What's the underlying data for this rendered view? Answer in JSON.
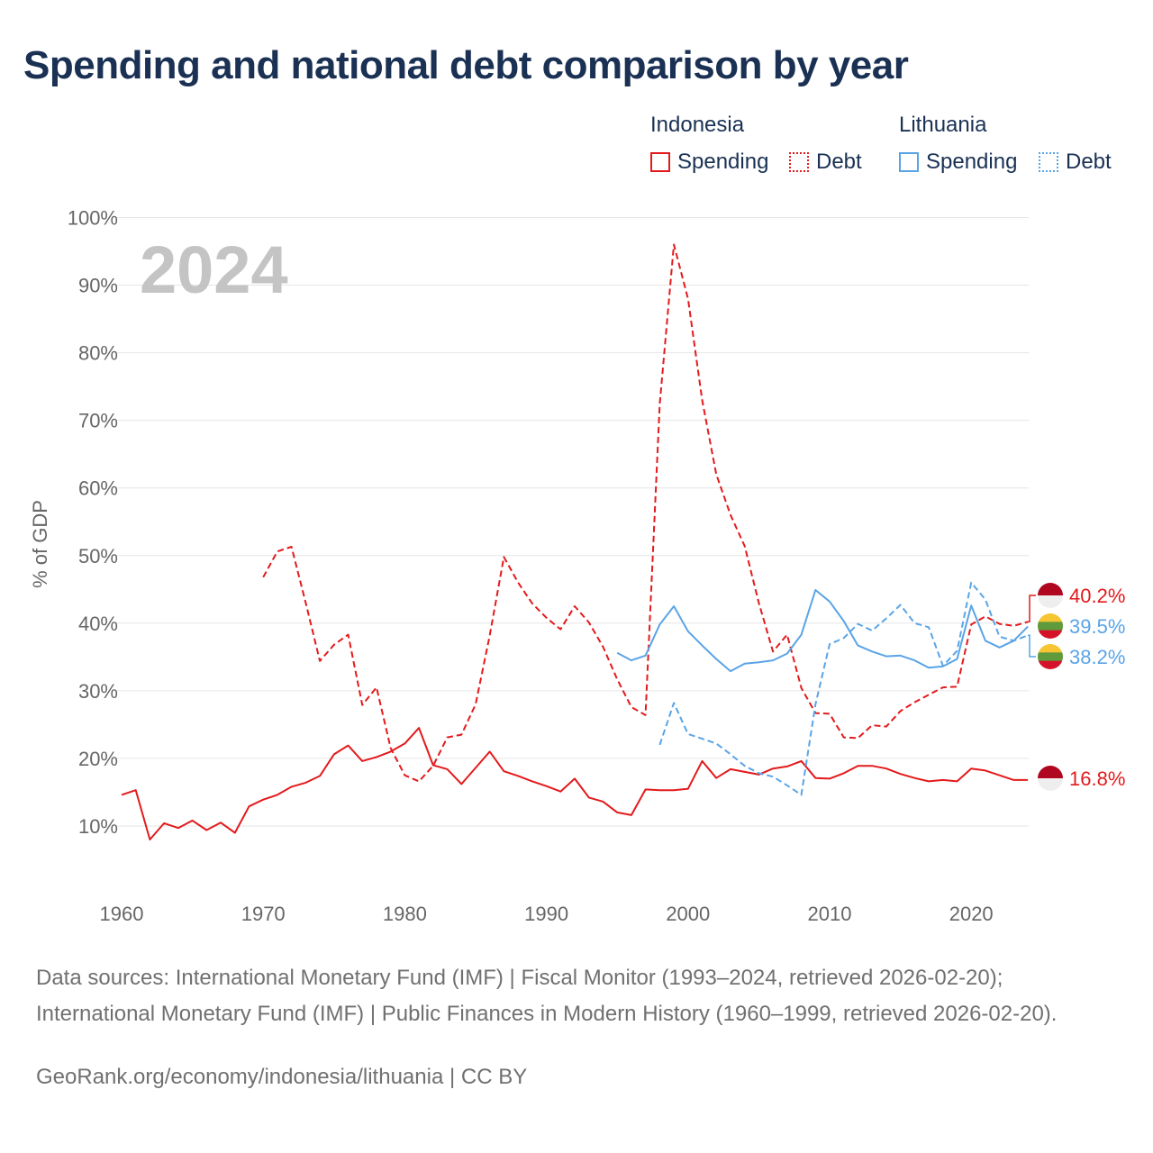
{
  "title": "Spending and national debt comparison by year",
  "legend": {
    "groups": [
      {
        "name": "Indonesia",
        "items": [
          "Spending",
          "Debt"
        ]
      },
      {
        "name": "Lithuania",
        "items": [
          "Spending",
          "Debt"
        ]
      }
    ]
  },
  "colors": {
    "indonesia": "#e31a1c",
    "lithuania": "#5aa4e6",
    "year_watermark": "#c4c4c4",
    "grid": "#e6e6e6",
    "axis_text": "#666666"
  },
  "chart_data": {
    "type": "line",
    "ylabel": "% of GDP",
    "year_label": "2024",
    "xlim": [
      1960,
      2025
    ],
    "ylim": [
      0,
      100
    ],
    "x_ticks": [
      1960,
      1970,
      1980,
      1990,
      2000,
      2010,
      2020
    ],
    "y_ticks": [
      10,
      20,
      30,
      40,
      50,
      60,
      70,
      80,
      90,
      100
    ],
    "y_tick_labels": [
      "10%",
      "20%",
      "30%",
      "40%",
      "50%",
      "60%",
      "70%",
      "80%",
      "90%",
      "100%"
    ],
    "series": [
      {
        "name": "Indonesia Spending",
        "country": "Indonesia",
        "measure": "Spending",
        "style": "solid",
        "x": [
          1960,
          1961,
          1962,
          1963,
          1964,
          1965,
          1966,
          1967,
          1968,
          1969,
          1970,
          1971,
          1972,
          1973,
          1974,
          1975,
          1976,
          1977,
          1978,
          1979,
          1980,
          1981,
          1982,
          1983,
          1984,
          1985,
          1986,
          1987,
          1988,
          1989,
          1990,
          1991,
          1992,
          1993,
          1994,
          1995,
          1996,
          1997,
          1998,
          1999,
          2000,
          2001,
          2002,
          2003,
          2004,
          2005,
          2006,
          2007,
          2008,
          2009,
          2010,
          2011,
          2012,
          2013,
          2014,
          2015,
          2016,
          2017,
          2018,
          2019,
          2020,
          2021,
          2022,
          2023,
          2024
        ],
        "values": [
          14.6,
          15.3,
          8.0,
          10.4,
          9.7,
          10.8,
          9.4,
          10.5,
          9.0,
          12.9,
          13.9,
          14.6,
          15.8,
          16.4,
          17.4,
          20.6,
          21.9,
          19.6,
          20.2,
          21.0,
          22.2,
          24.5,
          19.0,
          18.4,
          16.2,
          18.6,
          21.0,
          18.1,
          17.4,
          16.6,
          15.9,
          15.1,
          17.0,
          14.2,
          13.6,
          12.0,
          11.6,
          15.4,
          15.3,
          15.3,
          15.5,
          19.6,
          17.1,
          18.4,
          18.0,
          17.6,
          18.5,
          18.8,
          19.6,
          17.1,
          17.0,
          17.8,
          18.9,
          18.9,
          18.5,
          17.7,
          17.1,
          16.6,
          16.8,
          16.6,
          18.5,
          18.2,
          17.5,
          16.8,
          16.8
        ]
      },
      {
        "name": "Indonesia Debt",
        "country": "Indonesia",
        "measure": "Debt",
        "style": "dashed",
        "x": [
          1970,
          1971,
          1972,
          1973,
          1974,
          1975,
          1976,
          1977,
          1978,
          1979,
          1980,
          1981,
          1982,
          1983,
          1984,
          1985,
          1986,
          1987,
          1988,
          1989,
          1990,
          1991,
          1992,
          1993,
          1994,
          1995,
          1996,
          1997,
          1998,
          1999,
          2000,
          2001,
          2002,
          2003,
          2004,
          2005,
          2006,
          2007,
          2008,
          2009,
          2010,
          2011,
          2012,
          2013,
          2014,
          2015,
          2016,
          2017,
          2018,
          2019,
          2020,
          2021,
          2022,
          2023,
          2024
        ],
        "values": [
          46.8,
          50.6,
          51.3,
          43.0,
          34.4,
          36.8,
          38.3,
          27.9,
          30.5,
          21.5,
          17.5,
          16.6,
          18.9,
          23.1,
          23.5,
          28.0,
          38.2,
          49.8,
          46.0,
          42.9,
          40.8,
          39.1,
          42.5,
          40.1,
          36.5,
          31.7,
          27.6,
          26.4,
          72.4,
          96.0,
          88.0,
          73.0,
          62.0,
          56.0,
          51.4,
          43.0,
          35.8,
          38.3,
          30.4,
          26.7,
          26.6,
          23.1,
          23.0,
          24.9,
          24.7,
          27.0,
          28.3,
          29.4,
          30.5,
          30.6,
          39.8,
          41.0,
          39.9,
          39.6,
          40.2
        ]
      },
      {
        "name": "Lithuania Spending",
        "country": "Lithuania",
        "measure": "Spending",
        "style": "solid",
        "x": [
          1995,
          1996,
          1997,
          1998,
          1999,
          2000,
          2001,
          2002,
          2003,
          2004,
          2005,
          2006,
          2007,
          2008,
          2009,
          2010,
          2011,
          2012,
          2013,
          2014,
          2015,
          2016,
          2017,
          2018,
          2019,
          2020,
          2021,
          2022,
          2023,
          2024
        ],
        "values": [
          35.6,
          34.5,
          35.2,
          39.8,
          42.5,
          38.8,
          36.7,
          34.7,
          32.9,
          34.0,
          34.2,
          34.5,
          35.5,
          38.3,
          44.9,
          43.2,
          40.3,
          36.7,
          35.8,
          35.1,
          35.2,
          34.5,
          33.4,
          33.6,
          34.7,
          42.6,
          37.4,
          36.4,
          37.4,
          39.5
        ]
      },
      {
        "name": "Lithuania Debt",
        "country": "Lithuania",
        "measure": "Debt",
        "style": "dashed",
        "x": [
          1998,
          1999,
          2000,
          2001,
          2002,
          2003,
          2004,
          2005,
          2006,
          2007,
          2008,
          2009,
          2010,
          2011,
          2012,
          2013,
          2014,
          2015,
          2016,
          2017,
          2018,
          2019,
          2020,
          2021,
          2022,
          2023,
          2024
        ],
        "values": [
          22.0,
          28.2,
          23.6,
          22.9,
          22.2,
          20.6,
          18.9,
          17.8,
          17.3,
          16.0,
          14.6,
          28.0,
          36.9,
          37.8,
          39.9,
          38.9,
          40.7,
          42.7,
          40.0,
          39.4,
          33.7,
          35.9,
          46.0,
          43.5,
          38.0,
          37.4,
          38.2
        ]
      }
    ],
    "end_labels": [
      {
        "series": "Indonesia Debt",
        "text": "40.2%",
        "flag": "indonesia"
      },
      {
        "series": "Lithuania Spending",
        "text": "39.5%",
        "flag": "lithuania"
      },
      {
        "series": "Lithuania Debt",
        "text": "38.2%",
        "flag": "lithuania"
      },
      {
        "series": "Indonesia Spending",
        "text": "16.8%",
        "flag": "indonesia"
      }
    ]
  },
  "footer": {
    "sources": "Data sources: International Monetary Fund (IMF) | Fiscal Monitor (1993–2024, retrieved 2026-02-20); International Monetary Fund (IMF) | Public Finances in Modern History (1960–1999, retrieved 2026-02-20).",
    "credit": "GeoRank.org/economy/indonesia/lithuania | CC BY"
  }
}
